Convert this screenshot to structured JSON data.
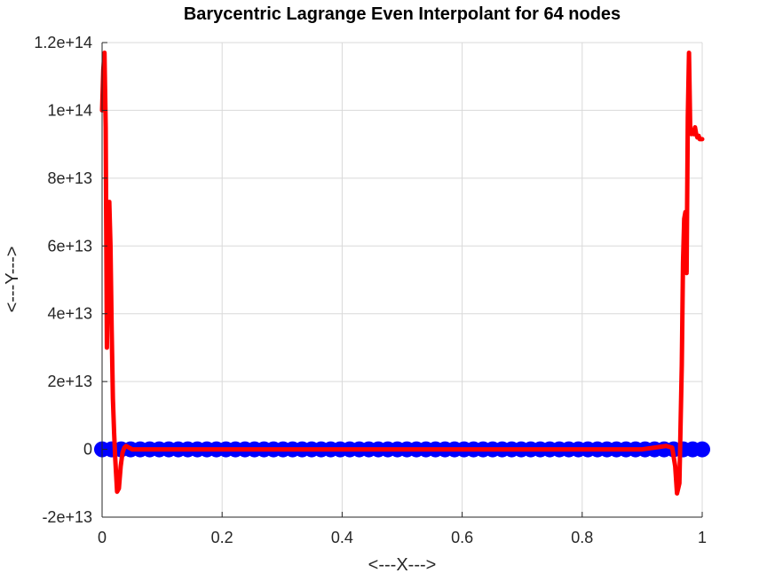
{
  "chart_data": {
    "type": "line",
    "title": "Barycentric Lagrange Even Interpolant for 64 nodes",
    "xlabel": "<---X--->",
    "ylabel": "<---Y--->",
    "xlim": [
      0,
      1
    ],
    "ylim": [
      -20000000000000.0,
      120000000000000.0
    ],
    "grid": true,
    "x_ticks": [
      {
        "value": 0,
        "label": "0"
      },
      {
        "value": 0.2,
        "label": "0.2"
      },
      {
        "value": 0.4,
        "label": "0.4"
      },
      {
        "value": 0.6,
        "label": "0.6"
      },
      {
        "value": 0.8,
        "label": "0.8"
      },
      {
        "value": 1,
        "label": "1"
      }
    ],
    "y_ticks": [
      {
        "value": -20000000000000.0,
        "label": "-2e+13"
      },
      {
        "value": 0,
        "label": "0"
      },
      {
        "value": 20000000000000.0,
        "label": "2e+13"
      },
      {
        "value": 40000000000000.0,
        "label": "4e+13"
      },
      {
        "value": 60000000000000.0,
        "label": "6e+13"
      },
      {
        "value": 80000000000000.0,
        "label": "8e+13"
      },
      {
        "value": 100000000000000.0,
        "label": "1e+14"
      },
      {
        "value": 120000000000000.0,
        "label": "1.2e+14"
      }
    ],
    "colors": {
      "nodes": "#0000ff",
      "interpolant": "#ff0000",
      "grid": "#d9d9d9",
      "axis": "#262626"
    },
    "series": [
      {
        "kind": "markers",
        "x_start": 0.0,
        "x_end": 1.0,
        "count": 64,
        "y": 0
      },
      {
        "kind": "line",
        "x": [
          0.0,
          0.002,
          0.004,
          0.006,
          0.008,
          0.01,
          0.012,
          0.014,
          0.016,
          0.018,
          0.02,
          0.022,
          0.025,
          0.028,
          0.031,
          0.034,
          0.037,
          0.04,
          0.045,
          0.05,
          0.06,
          0.1,
          0.3,
          0.5,
          0.7,
          0.9,
          0.94,
          0.95,
          0.955,
          0.958,
          0.962,
          0.966,
          0.968,
          0.97,
          0.972,
          0.974,
          0.976,
          0.978,
          0.98,
          0.982,
          0.984,
          0.986,
          0.988,
          0.99,
          0.992,
          0.994,
          0.996,
          0.998,
          1.0
        ],
        "y": [
          100000000000000.0,
          112000000000000.0,
          117000000000000.0,
          95000000000000.0,
          30000000000000.0,
          65000000000000.0,
          73000000000000.0,
          60000000000000.0,
          35000000000000.0,
          15000000000000.0,
          5000000000000.0,
          -3000000000000.0,
          -12500000000000.0,
          -11500000000000.0,
          -5000000000000.0,
          -1000000000000.0,
          500000000000.0,
          1000000000000.0,
          500000000000.0,
          0,
          0,
          0,
          0,
          0,
          0,
          0,
          1000000000000.0,
          500000000000.0,
          -5000000000000.0,
          -13000000000000.0,
          -10000000000000.0,
          25000000000000.0,
          55000000000000.0,
          68000000000000.0,
          70000000000000.0,
          52000000000000.0,
          98000000000000.0,
          117000000000000.0,
          95000000000000.0,
          93000000000000.0,
          94000000000000.0,
          93000000000000.0,
          95000000000000.0,
          93000000000000.0,
          92000000000000.0,
          92500000000000.0,
          91500000000000.0,
          91500000000000.0,
          91500000000000.0
        ]
      }
    ]
  }
}
